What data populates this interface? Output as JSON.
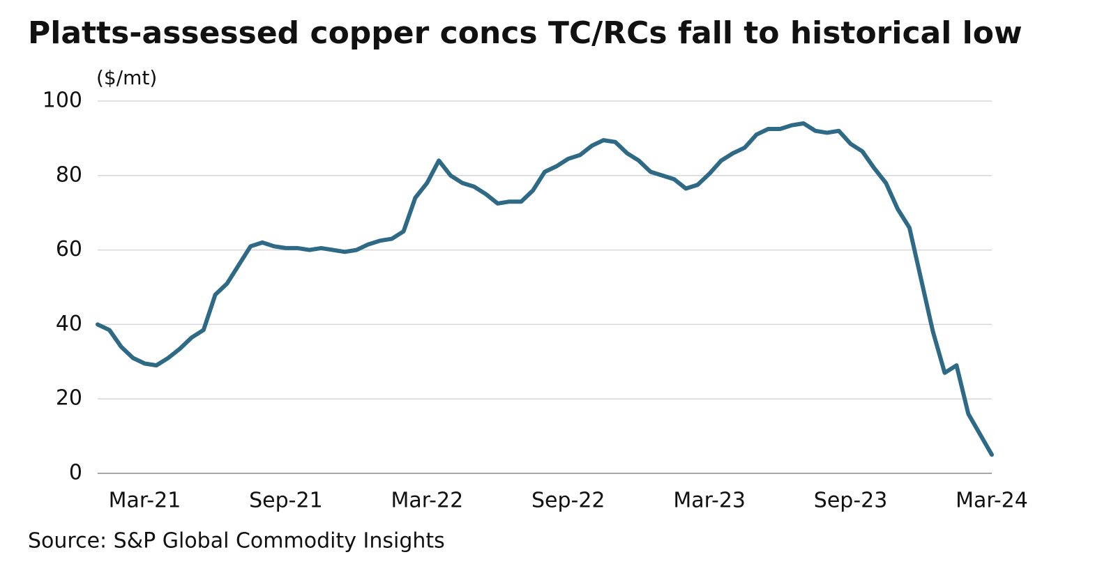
{
  "chart_data": {
    "type": "line",
    "title": "Platts-assessed copper concs TC/RCs fall to historical low",
    "y_label": "($/mt)",
    "source": "Source: S&P Global Commodity Insights",
    "categories": [
      null,
      null,
      null,
      null,
      "Mar-21",
      null,
      null,
      null,
      null,
      null,
      null,
      null,
      null,
      null,
      null,
      null,
      "Sep-21",
      null,
      null,
      null,
      null,
      null,
      null,
      null,
      null,
      null,
      null,
      null,
      "Mar-22",
      null,
      null,
      null,
      null,
      null,
      null,
      null,
      null,
      null,
      null,
      null,
      "Sep-22",
      null,
      null,
      null,
      null,
      null,
      null,
      null,
      null,
      null,
      null,
      null,
      "Mar-23",
      null,
      null,
      null,
      null,
      null,
      null,
      null,
      null,
      null,
      null,
      null,
      "Sep-23",
      null,
      null,
      null,
      null,
      null,
      null,
      null,
      null,
      null,
      null,
      null,
      "Mar-24"
    ],
    "values": [
      40,
      38.5,
      34,
      31,
      29.5,
      29,
      31,
      33.5,
      36.5,
      38.5,
      48,
      51,
      56,
      61,
      62,
      61,
      60.5,
      60.5,
      60,
      60.5,
      60,
      59.5,
      60,
      61.5,
      62.5,
      63,
      65,
      74,
      78,
      84,
      80,
      78,
      77,
      75,
      72.5,
      73,
      73,
      76,
      81,
      82.5,
      84.5,
      85.5,
      88,
      89.5,
      89,
      86,
      84,
      81,
      80,
      79,
      76.5,
      77.5,
      80.5,
      84,
      86,
      87.5,
      91,
      92.5,
      92.5,
      93.5,
      94,
      92,
      91.5,
      92,
      88.5,
      86.5,
      82,
      78,
      71,
      66,
      52,
      38,
      27,
      29,
      16,
      10.5,
      5
    ],
    "color": "#2e6a85",
    "ylim": [
      0,
      100
    ],
    "yticks": [
      0,
      20,
      40,
      60,
      80,
      100
    ],
    "grid": true
  }
}
